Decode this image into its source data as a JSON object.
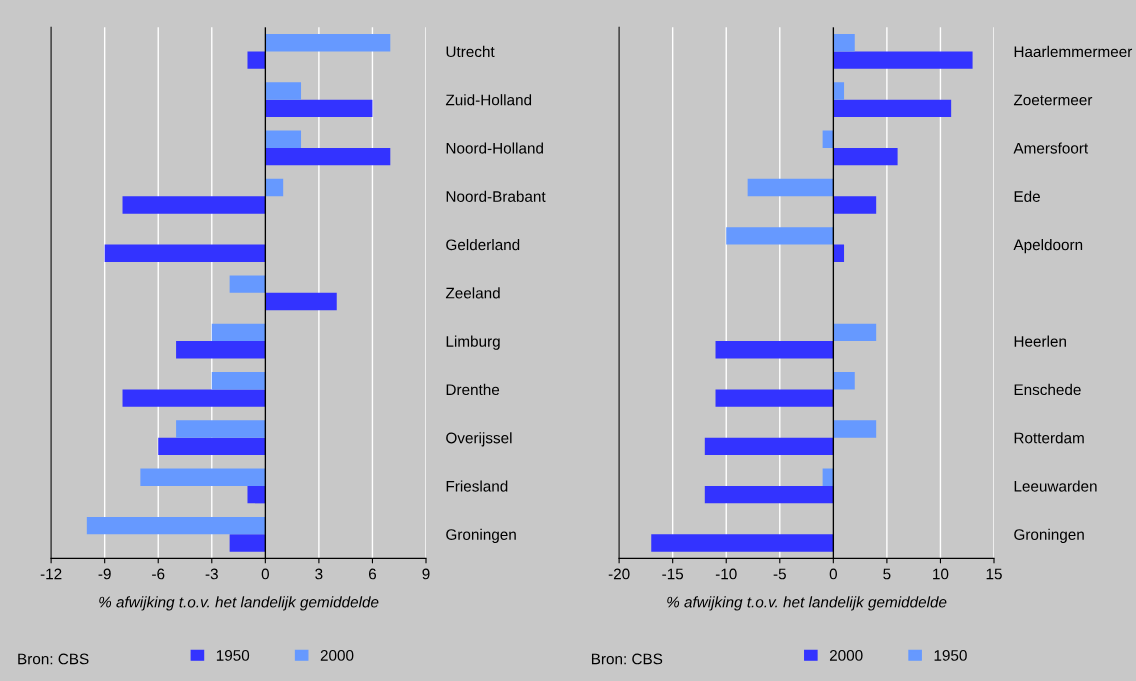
{
  "chart_data": [
    {
      "type": "bar",
      "orientation": "horizontal",
      "xlabel": "% afwijking t.o.v. het landelijk gemiddelde",
      "categories": [
        "Utrecht",
        "Zuid-Holland",
        "Noord-Holland",
        "Noord-Brabant",
        "Gelderland",
        "Zeeland",
        "Limburg",
        "Drenthe",
        "Overijssel",
        "Friesland",
        "Groningen"
      ],
      "series": [
        {
          "name": "1950",
          "color": "#3333ff",
          "values": [
            -1,
            6,
            7,
            -8,
            -9,
            4,
            -5,
            -8,
            -6,
            -1,
            -2
          ]
        },
        {
          "name": "2000",
          "color": "#6699ff",
          "values": [
            7,
            2,
            2,
            1,
            null,
            -2,
            -3,
            -3,
            -5,
            -7,
            -10
          ]
        }
      ],
      "xlim": [
        -12,
        9
      ],
      "xticks": [
        -12,
        -9,
        -6,
        -3,
        0,
        3,
        6,
        9
      ],
      "grid": "x",
      "legend": "bottom",
      "ref_lines": [
        {
          "axis": "x",
          "value": 0,
          "color": "#000000"
        }
      ],
      "annotations": [
        "Bron: CBS"
      ]
    },
    {
      "type": "bar",
      "orientation": "horizontal",
      "xlabel": "% afwijking t.o.v. het landelijk gemiddelde",
      "categories": [
        "Haarlemmermeer",
        "Zoetermeer",
        "Amersfoort",
        "Ede",
        "Apeldoorn",
        null,
        "Heerlen",
        "Enschede",
        "Rotterdam",
        "Leeuwarden",
        "Groningen"
      ],
      "series": [
        {
          "name": "2000",
          "color": "#3333ff",
          "values": [
            13,
            11,
            6,
            4,
            1,
            null,
            -11,
            -11,
            -12,
            -12,
            -17
          ]
        },
        {
          "name": "1950",
          "color": "#6699ff",
          "values": [
            2,
            1,
            -1,
            -8,
            -10,
            null,
            4,
            2,
            4,
            -1,
            null
          ]
        }
      ],
      "xlim": [
        -20,
        15
      ],
      "xticks": [
        -20,
        -15,
        -10,
        -5,
        0,
        5,
        10,
        15
      ],
      "grid": "x",
      "legend": "bottom",
      "ref_lines": [
        {
          "axis": "x",
          "value": 0,
          "color": "#000000"
        }
      ],
      "annotations": [
        "Bron: CBS"
      ]
    }
  ]
}
